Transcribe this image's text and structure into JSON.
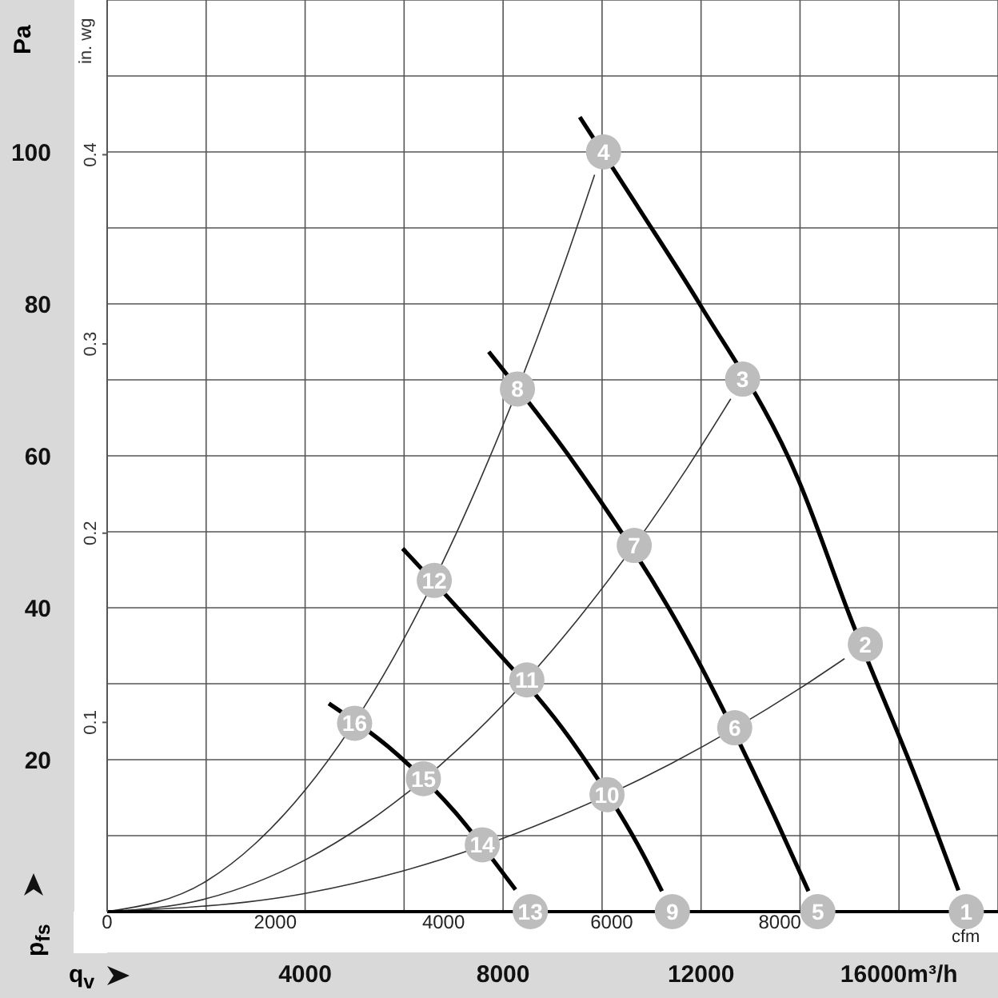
{
  "chart_data": {
    "type": "line",
    "xlabel": "q$_{v}$",
    "ylabel": "p$_{fs}$",
    "y2label": "in. wg",
    "x2label": "cfm",
    "annotations": [
      "Pa",
      {
        "text": "1",
        "x": 17360,
        "y": 0
      },
      {
        "text": "2",
        "x": 15320,
        "y": 35.2
      },
      {
        "text": "3",
        "x": 12840,
        "y": 70.1
      },
      {
        "text": "4",
        "x": 10030,
        "y": 100
      },
      {
        "text": "5",
        "x": 14360,
        "y": 0
      },
      {
        "text": "6",
        "x": 12680,
        "y": 24.2
      },
      {
        "text": "7",
        "x": 10650,
        "y": 48.2
      },
      {
        "text": "8",
        "x": 8290,
        "y": 68.8
      },
      {
        "text": "9",
        "x": 11420,
        "y": 0
      },
      {
        "text": "10",
        "x": 10100,
        "y": 15.4
      },
      {
        "text": "11",
        "x": 8480,
        "y": 30.5
      },
      {
        "text": "12",
        "x": 6610,
        "y": 43.6
      },
      {
        "text": "13",
        "x": 8550,
        "y": 0
      },
      {
        "text": "14",
        "x": 7580,
        "y": 8.8
      },
      {
        "text": "15",
        "x": 6390,
        "y": 17.5
      },
      {
        "text": "16",
        "x": 5000,
        "y": 24.8
      }
    ],
    "xlim": [
      0,
      18000
    ],
    "xticks": [
      {
        "value": 0,
        "label": null
      },
      {
        "value": 2000,
        "label": null
      },
      4000,
      {
        "value": 6000,
        "label": null
      },
      8000,
      {
        "value": 10000,
        "label": null
      },
      12000,
      {
        "value": 14000,
        "label": null
      },
      {
        "value": 16000,
        "label": "16000m³/h"
      },
      {
        "value": 18000,
        "label": null
      }
    ],
    "x2lim": [
      0,
      10594.4
    ],
    "x2ticks": [
      0,
      2000,
      4000,
      6000,
      8000
    ],
    "ylim": [
      0,
      120
    ],
    "yticks": [
      {
        "value": 0,
        "label": null
      },
      {
        "value": 10,
        "label": null
      },
      20,
      {
        "value": 30,
        "label": null
      },
      40,
      {
        "value": 50,
        "label": null
      },
      60,
      {
        "value": 70,
        "label": null
      },
      80,
      {
        "value": 90,
        "label": null
      },
      100,
      {
        "value": 110,
        "label": null
      },
      {
        "value": 120,
        "label": null
      }
    ],
    "y2lim": [
      0,
      0.48176
    ],
    "y2ticks": [
      0.1,
      0.2,
      0.3,
      0.4
    ],
    "grid": true,
    "marker": "none",
    "line_style": "solid",
    "series": [
      {
        "color": "#000000",
        "x": [
          9550,
          10740,
          11970,
          13970,
          15030,
          16390,
          17200
        ],
        "values": [
          104.6,
          92.6,
          80,
          56.8,
          38.5,
          16.8,
          2.8
        ]
      },
      {
        "color": "#000000",
        "x": [
          7710,
          9450,
          11710,
          13550,
          14170
        ],
        "values": [
          73.7,
          58.9,
          35.8,
          11.6,
          2.7
        ]
      },
      {
        "color": "#000000",
        "x": [
          5970,
          7520,
          9360,
          10840,
          11210
        ],
        "values": [
          47.8,
          36.8,
          22.7,
          7.4,
          2.7
        ]
      },
      {
        "color": "#000000",
        "x": [
          4480,
          5680,
          7030,
          8100,
          8250
        ],
        "values": [
          27.4,
          21.7,
          13.1,
          4.2,
          2.9
        ]
      },
      {
        "color": "#333333",
        "x": [
          0,
          2000,
          3000,
          4000,
          5800,
          7500,
          9200,
          9850
        ],
        "values": [
          0,
          4,
          9,
          16,
          33.6,
          56.3,
          84.6,
          97
        ]
      },
      {
        "color": "#333333",
        "x": [
          0,
          2000,
          4000,
          5200,
          7400,
          9500,
          11700,
          12600
        ],
        "values": [
          0,
          1.7,
          6.8,
          11.5,
          23.3,
          38.4,
          58.2,
          67.5
        ]
      },
      {
        "color": "#333333",
        "x": [
          0,
          4000,
          6000,
          9000,
          11400,
          14000,
          14900
        ],
        "values": [
          0,
          2.4,
          5.4,
          12.2,
          19.5,
          29.4,
          33.3
        ]
      }
    ]
  }
}
